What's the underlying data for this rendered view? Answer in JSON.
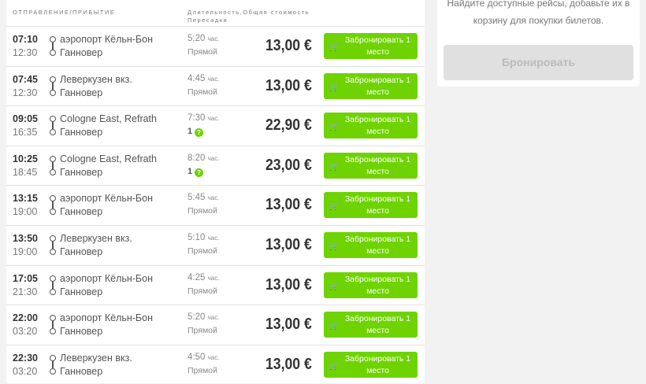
{
  "header": {
    "departure_arrival": "Отправление/прибытие",
    "duration": "Длительность,",
    "transfers": "Пересадки",
    "total_cost": "Общая стоимость"
  },
  "sidebar": {
    "message": "Найдите доступные рейсы, добавьте их в корзину для покупки билетов.",
    "book_button": "Бронировать"
  },
  "accent_color": "#6ed300",
  "unit": "час.",
  "book_label": "Забронировать 1 место",
  "trips": [
    {
      "dep": "07:10",
      "arr": "12:30",
      "from": "аэропорт Кёльн-Бон",
      "to": "Ганновер",
      "duration": "5:20",
      "transfers": "Прямой",
      "price": "13,00 €"
    },
    {
      "dep": "07:45",
      "arr": "12:30",
      "from": "Леверкузен вкз.",
      "to": "Ганновер",
      "duration": "4:45",
      "transfers": "Прямой",
      "price": "13,00 €"
    },
    {
      "dep": "09:05",
      "arr": "16:35",
      "from": "Cologne East, Refrath",
      "to": "Ганновер",
      "duration": "7:30",
      "transfers": "1",
      "price": "22,90 €"
    },
    {
      "dep": "10:25",
      "arr": "18:45",
      "from": "Cologne East, Refrath",
      "to": "Ганновер",
      "duration": "8:20",
      "transfers": "1",
      "price": "23,00 €"
    },
    {
      "dep": "13:15",
      "arr": "19:00",
      "from": "аэропорт Кёльн-Бон",
      "to": "Ганновер",
      "duration": "5:45",
      "transfers": "Прямой",
      "price": "13,00 €"
    },
    {
      "dep": "13:50",
      "arr": "19:00",
      "from": "Леверкузен вкз.",
      "to": "Ганновер",
      "duration": "5:10",
      "transfers": "Прямой",
      "price": "13,00 €"
    },
    {
      "dep": "17:05",
      "arr": "21:30",
      "from": "аэропорт Кёльн-Бон",
      "to": "Ганновер",
      "duration": "4:25",
      "transfers": "Прямой",
      "price": "13,00 €"
    },
    {
      "dep": "22:00",
      "arr": "03:20",
      "from": "аэропорт Кёльн-Бон",
      "to": "Ганновер",
      "duration": "5:20",
      "transfers": "Прямой",
      "price": "13,00 €"
    },
    {
      "dep": "22:30",
      "arr": "03:20",
      "from": "Леверкузен вкз.",
      "to": "Ганновер",
      "duration": "4:50",
      "transfers": "Прямой",
      "price": "13,00 €"
    }
  ]
}
